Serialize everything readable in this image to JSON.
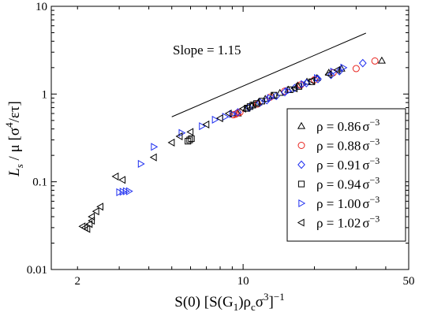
{
  "chart_data": {
    "type": "scatter",
    "xscale": "log",
    "yscale": "log",
    "xlim": [
      1.55,
      50
    ],
    "ylim": [
      0.01,
      10
    ],
    "x_tick_labels": [
      {
        "value": 2,
        "label": "2"
      },
      {
        "value": 10,
        "label": "10"
      },
      {
        "value": 50,
        "label": "50"
      }
    ],
    "y_tick_labels": [
      {
        "value": 0.01,
        "label": "0.01"
      },
      {
        "value": 0.1,
        "label": "0.1"
      },
      {
        "value": 1,
        "label": "1"
      },
      {
        "value": 10,
        "label": "10"
      }
    ],
    "xlabel": {
      "main": "S(0) [S(G",
      "sub": "1",
      "mid": ")ρ",
      "sub2": "c",
      "mid2": "σ",
      "sup": "3",
      "tail": "]",
      "sup2": "−1"
    },
    "ylabel": {
      "main": "L",
      "sub": "s",
      "mid": " / μ  [σ",
      "sup": "4",
      "tail": "/ετ]"
    },
    "annotation": {
      "text": "Slope = 1.15",
      "line": {
        "x": [
          5.0,
          33.0
        ],
        "y": [
          0.55,
          4.95
        ]
      }
    },
    "legend": {
      "position": "lower-right"
    },
    "series": [
      {
        "name": "ρ = 0.86σ−3",
        "label_main": "ρ = 0.86",
        "label_unit": "σ",
        "label_exp": "−3",
        "marker": "triangle-up",
        "color": "#000000",
        "points": [
          [
            9.5,
            0.6
          ],
          [
            10.3,
            0.68
          ],
          [
            10.9,
            0.74
          ],
          [
            11.6,
            0.8
          ],
          [
            12.4,
            0.88
          ],
          [
            13.3,
            0.95
          ],
          [
            14.3,
            1.03
          ],
          [
            15.5,
            1.12
          ],
          [
            17.0,
            1.25
          ],
          [
            18.6,
            1.38
          ],
          [
            20.5,
            1.52
          ],
          [
            23.0,
            1.75
          ],
          [
            26.0,
            1.95
          ],
          [
            38.5,
            2.4
          ]
        ]
      },
      {
        "name": "ρ = 0.88σ−3",
        "label_main": "ρ = 0.88",
        "label_unit": "σ",
        "label_exp": "−3",
        "marker": "circle",
        "color": "#e8231e",
        "points": [
          [
            9.1,
            0.58
          ],
          [
            9.3,
            0.59
          ],
          [
            9.5,
            0.61
          ],
          [
            9.7,
            0.62
          ],
          [
            11.5,
            0.77
          ],
          [
            13.0,
            0.92
          ],
          [
            15.0,
            1.08
          ],
          [
            17.5,
            1.27
          ],
          [
            20.0,
            1.45
          ],
          [
            24.0,
            1.75
          ],
          [
            30.0,
            1.95
          ],
          [
            36.0,
            2.38
          ]
        ]
      },
      {
        "name": "ρ = 0.91σ−3",
        "label_main": "ρ = 0.91",
        "label_unit": "σ",
        "label_exp": "−3",
        "marker": "diamond",
        "color": "#1f2ff0",
        "points": [
          [
            9.5,
            0.62
          ],
          [
            10.6,
            0.7
          ],
          [
            11.8,
            0.8
          ],
          [
            12.6,
            0.85
          ],
          [
            13.8,
            0.95
          ],
          [
            15.0,
            1.05
          ],
          [
            16.5,
            1.17
          ],
          [
            18.5,
            1.33
          ],
          [
            20.7,
            1.48
          ],
          [
            23.5,
            1.65
          ],
          [
            25.5,
            1.82
          ],
          [
            32.0,
            2.25
          ]
        ]
      },
      {
        "name": "ρ = 0.94σ−3",
        "label_main": "ρ = 0.94",
        "label_unit": "σ",
        "label_exp": "−3",
        "marker": "square",
        "color": "#000000",
        "points": [
          [
            5.85,
            0.29
          ],
          [
            5.95,
            0.3
          ],
          [
            6.05,
            0.31
          ],
          [
            10.4,
            0.69
          ],
          [
            10.7,
            0.72
          ],
          [
            11.0,
            0.75
          ],
          [
            11.4,
            0.78
          ],
          [
            12.0,
            0.83
          ],
          [
            13.5,
            0.97
          ],
          [
            15.8,
            1.12
          ],
          [
            17.2,
            1.22
          ],
          [
            19.5,
            1.38
          ]
        ]
      },
      {
        "name": "ρ = 1.00σ−3",
        "label_main": "ρ = 1.00",
        "label_unit": "σ",
        "label_exp": "−3",
        "marker": "triangle-right",
        "color": "#1f2ff0",
        "points": [
          [
            3.0,
            0.076
          ],
          [
            3.1,
            0.077
          ],
          [
            3.2,
            0.078
          ],
          [
            3.3,
            0.078
          ],
          [
            3.7,
            0.16
          ],
          [
            4.2,
            0.25
          ],
          [
            5.5,
            0.36
          ],
          [
            6.7,
            0.43
          ],
          [
            7.6,
            0.51
          ],
          [
            8.4,
            0.55
          ],
          [
            9.0,
            0.59
          ],
          [
            13.0,
            0.9
          ],
          [
            15.5,
            1.08
          ],
          [
            18.0,
            1.3
          ],
          [
            20.5,
            1.52
          ],
          [
            24.0,
            1.8
          ],
          [
            26.5,
            2.0
          ]
        ]
      },
      {
        "name": "ρ = 1.02σ−3",
        "label_main": "ρ = 1.02",
        "label_unit": "σ",
        "label_exp": "−3",
        "marker": "triangle-left",
        "color": "#000000",
        "points": [
          [
            2.1,
            0.031
          ],
          [
            2.15,
            0.03
          ],
          [
            2.2,
            0.029
          ],
          [
            2.25,
            0.033
          ],
          [
            2.3,
            0.036
          ],
          [
            2.3,
            0.04
          ],
          [
            2.4,
            0.046
          ],
          [
            2.5,
            0.052
          ],
          [
            2.9,
            0.115
          ],
          [
            3.1,
            0.105
          ],
          [
            4.2,
            0.19
          ],
          [
            5.0,
            0.28
          ],
          [
            5.4,
            0.33
          ],
          [
            6.0,
            0.37
          ],
          [
            7.0,
            0.45
          ],
          [
            8.0,
            0.53
          ],
          [
            8.7,
            0.6
          ],
          [
            10.0,
            0.68
          ],
          [
            16.5,
            1.16
          ],
          [
            19.5,
            1.42
          ],
          [
            23.0,
            1.68
          ],
          [
            25.0,
            1.88
          ]
        ]
      }
    ]
  }
}
